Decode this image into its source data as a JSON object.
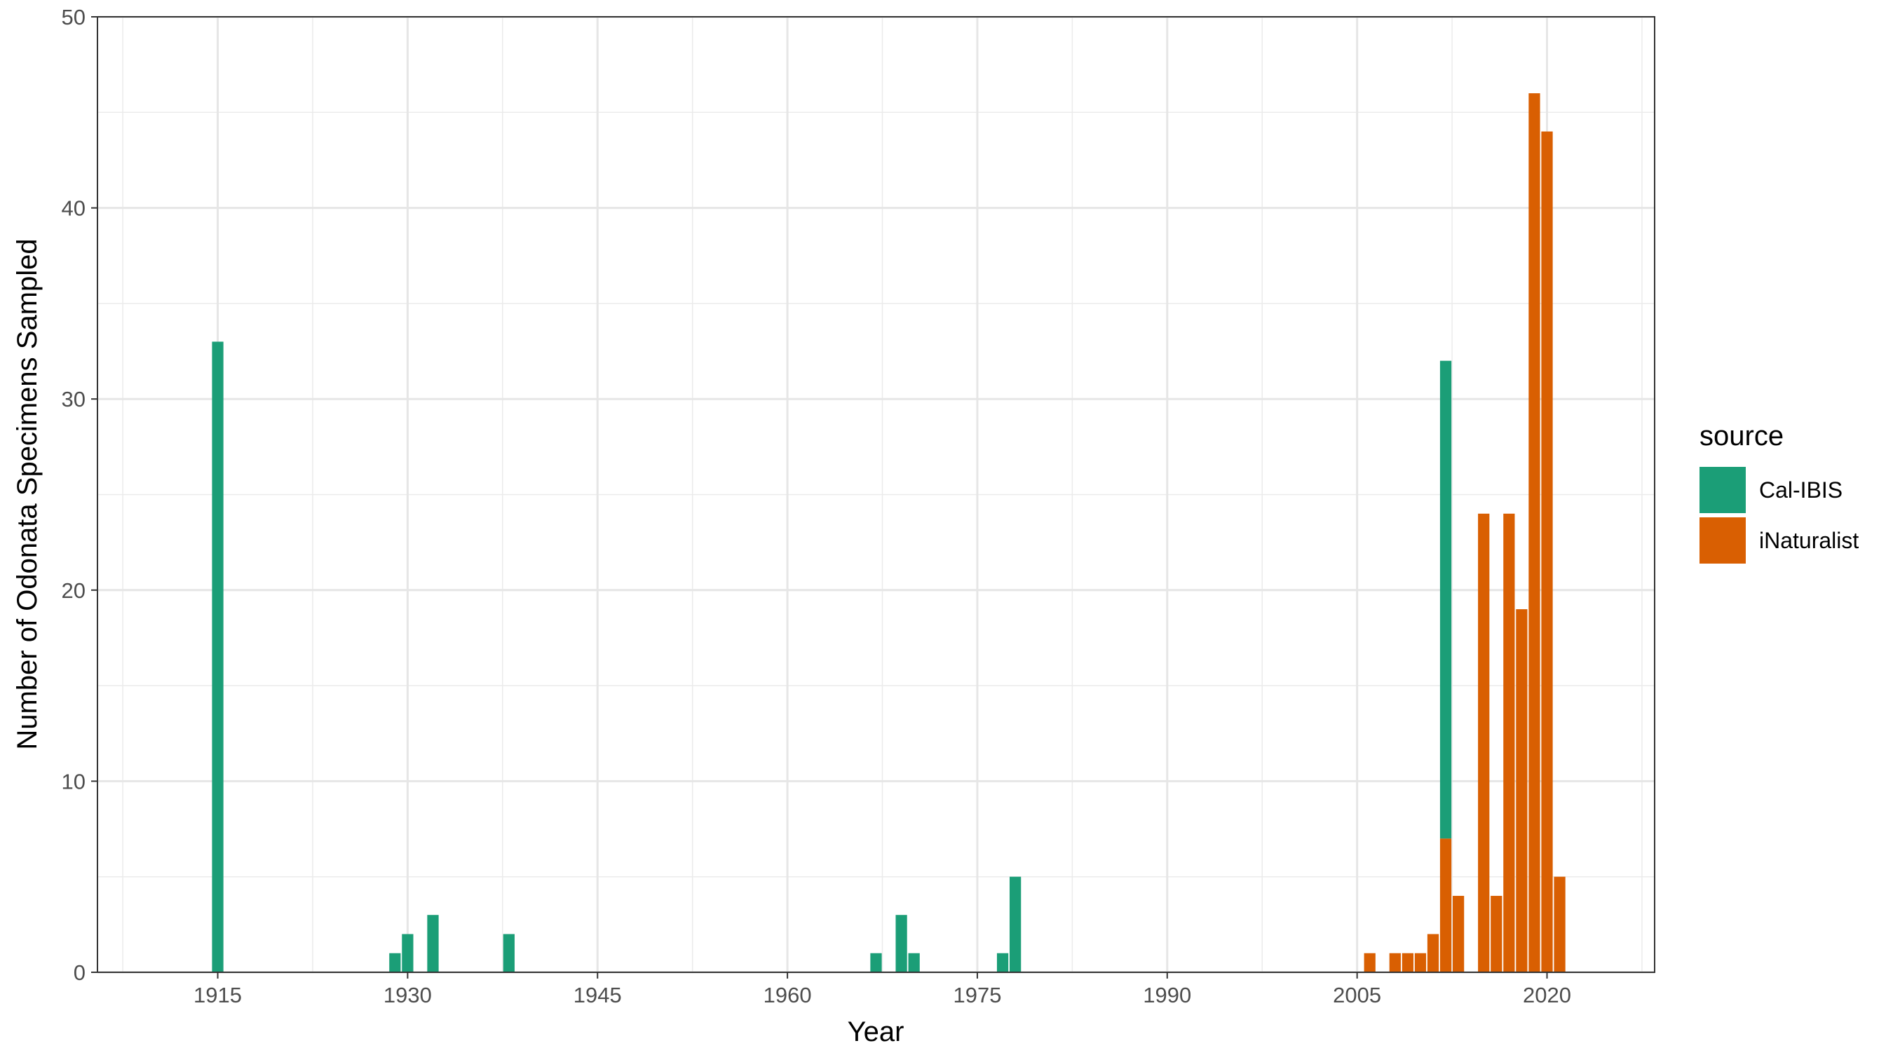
{
  "chart_data": {
    "type": "bar",
    "stacked": true,
    "xlabel": "Year",
    "ylabel": "Number of Odonata Specimens Sampled",
    "xlim": [
      1905.5,
      2028.5
    ],
    "ylim": [
      0,
      50
    ],
    "x_ticks": [
      1915,
      1930,
      1945,
      1960,
      1975,
      1990,
      2005,
      2020
    ],
    "y_ticks": [
      0,
      10,
      20,
      30,
      40,
      50
    ],
    "grid": true,
    "legend": {
      "title": "source",
      "position": "right"
    },
    "series": [
      {
        "name": "Cal-IBIS",
        "color": "#1B9E77",
        "points": [
          {
            "x": 1915,
            "y": 33
          },
          {
            "x": 1929,
            "y": 1
          },
          {
            "x": 1930,
            "y": 2
          },
          {
            "x": 1932,
            "y": 3
          },
          {
            "x": 1938,
            "y": 2
          },
          {
            "x": 1967,
            "y": 1
          },
          {
            "x": 1969,
            "y": 3
          },
          {
            "x": 1970,
            "y": 1
          },
          {
            "x": 1977,
            "y": 1
          },
          {
            "x": 1978,
            "y": 5
          },
          {
            "x": 2012,
            "y": 25
          }
        ]
      },
      {
        "name": "iNaturalist",
        "color": "#D95F02",
        "points": [
          {
            "x": 2006,
            "y": 1
          },
          {
            "x": 2008,
            "y": 1
          },
          {
            "x": 2009,
            "y": 1
          },
          {
            "x": 2010,
            "y": 1
          },
          {
            "x": 2011,
            "y": 2
          },
          {
            "x": 2012,
            "y": 7
          },
          {
            "x": 2013,
            "y": 4
          },
          {
            "x": 2015,
            "y": 24
          },
          {
            "x": 2016,
            "y": 4
          },
          {
            "x": 2017,
            "y": 24
          },
          {
            "x": 2018,
            "y": 19
          },
          {
            "x": 2019,
            "y": 46
          },
          {
            "x": 2020,
            "y": 44
          },
          {
            "x": 2021,
            "y": 5
          }
        ]
      }
    ]
  }
}
